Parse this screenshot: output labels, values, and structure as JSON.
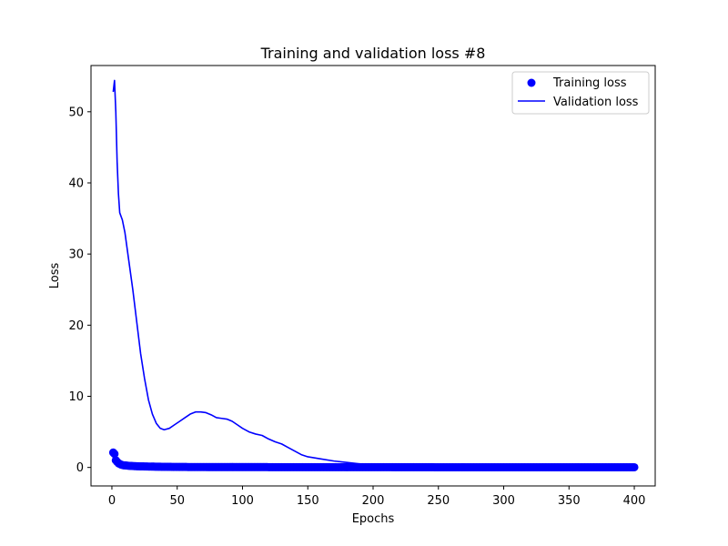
{
  "chart_data": {
    "type": "line",
    "title": "Training and validation loss #8",
    "xlabel": "Epochs",
    "ylabel": "Loss",
    "xlim": [
      -16,
      416
    ],
    "ylim": [
      -2.6,
      56.5
    ],
    "xticks": [
      0,
      50,
      100,
      150,
      200,
      250,
      300,
      350,
      400
    ],
    "yticks": [
      0,
      10,
      20,
      30,
      40,
      50
    ],
    "legend_position": "upper-right",
    "grid": false,
    "colors": {
      "series": "#0000ff",
      "axis": "#000000",
      "background": "#ffffff"
    },
    "series": [
      {
        "name": "Training loss",
        "type": "scatter",
        "marker": "circle",
        "points": [
          [
            1,
            2.1
          ],
          [
            2,
            1.9
          ],
          [
            3,
            1.0
          ],
          [
            4,
            0.8
          ],
          [
            5,
            0.6
          ],
          [
            6,
            0.5
          ],
          [
            7,
            0.4
          ],
          [
            8,
            0.35
          ],
          [
            9,
            0.3
          ],
          [
            10,
            0.3
          ],
          [
            12,
            0.25
          ],
          [
            14,
            0.22
          ],
          [
            16,
            0.2
          ],
          [
            18,
            0.18
          ],
          [
            20,
            0.16
          ],
          [
            23,
            0.15
          ],
          [
            26,
            0.13
          ],
          [
            30,
            0.12
          ],
          [
            35,
            0.1
          ],
          [
            40,
            0.09
          ],
          [
            50,
            0.07
          ],
          [
            60,
            0.06
          ],
          [
            80,
            0.05
          ],
          [
            100,
            0.05
          ],
          [
            150,
            0.04
          ],
          [
            200,
            0.04
          ],
          [
            250,
            0.03
          ],
          [
            300,
            0.03
          ],
          [
            350,
            0.03
          ],
          [
            400,
            0.03
          ]
        ]
      },
      {
        "name": "Validation loss",
        "type": "line",
        "points": [
          [
            1,
            52.8
          ],
          [
            2,
            54.4
          ],
          [
            3,
            50.0
          ],
          [
            4,
            43.0
          ],
          [
            5,
            38.5
          ],
          [
            6,
            35.8
          ],
          [
            8,
            34.8
          ],
          [
            10,
            33.0
          ],
          [
            13,
            29.0
          ],
          [
            16,
            25.0
          ],
          [
            19,
            20.5
          ],
          [
            22,
            16.0
          ],
          [
            25,
            12.5
          ],
          [
            28,
            9.5
          ],
          [
            31,
            7.5
          ],
          [
            34,
            6.2
          ],
          [
            37,
            5.5
          ],
          [
            40,
            5.3
          ],
          [
            44,
            5.5
          ],
          [
            48,
            6.0
          ],
          [
            52,
            6.5
          ],
          [
            56,
            7.0
          ],
          [
            60,
            7.5
          ],
          [
            64,
            7.8
          ],
          [
            68,
            7.8
          ],
          [
            72,
            7.7
          ],
          [
            76,
            7.4
          ],
          [
            80,
            7.0
          ],
          [
            84,
            6.9
          ],
          [
            88,
            6.8
          ],
          [
            92,
            6.5
          ],
          [
            96,
            6.0
          ],
          [
            100,
            5.5
          ],
          [
            105,
            5.0
          ],
          [
            110,
            4.7
          ],
          [
            115,
            4.5
          ],
          [
            120,
            4.0
          ],
          [
            125,
            3.6
          ],
          [
            130,
            3.3
          ],
          [
            135,
            2.8
          ],
          [
            140,
            2.3
          ],
          [
            145,
            1.8
          ],
          [
            150,
            1.5
          ],
          [
            160,
            1.2
          ],
          [
            170,
            0.9
          ],
          [
            180,
            0.7
          ],
          [
            190,
            0.5
          ],
          [
            200,
            0.35
          ],
          [
            210,
            0.3
          ],
          [
            220,
            0.28
          ],
          [
            230,
            0.3
          ],
          [
            240,
            0.25
          ],
          [
            260,
            0.2
          ],
          [
            280,
            0.2
          ],
          [
            300,
            0.18
          ],
          [
            320,
            0.17
          ],
          [
            340,
            0.16
          ],
          [
            360,
            0.15
          ],
          [
            380,
            0.15
          ],
          [
            400,
            0.15
          ]
        ]
      }
    ]
  }
}
